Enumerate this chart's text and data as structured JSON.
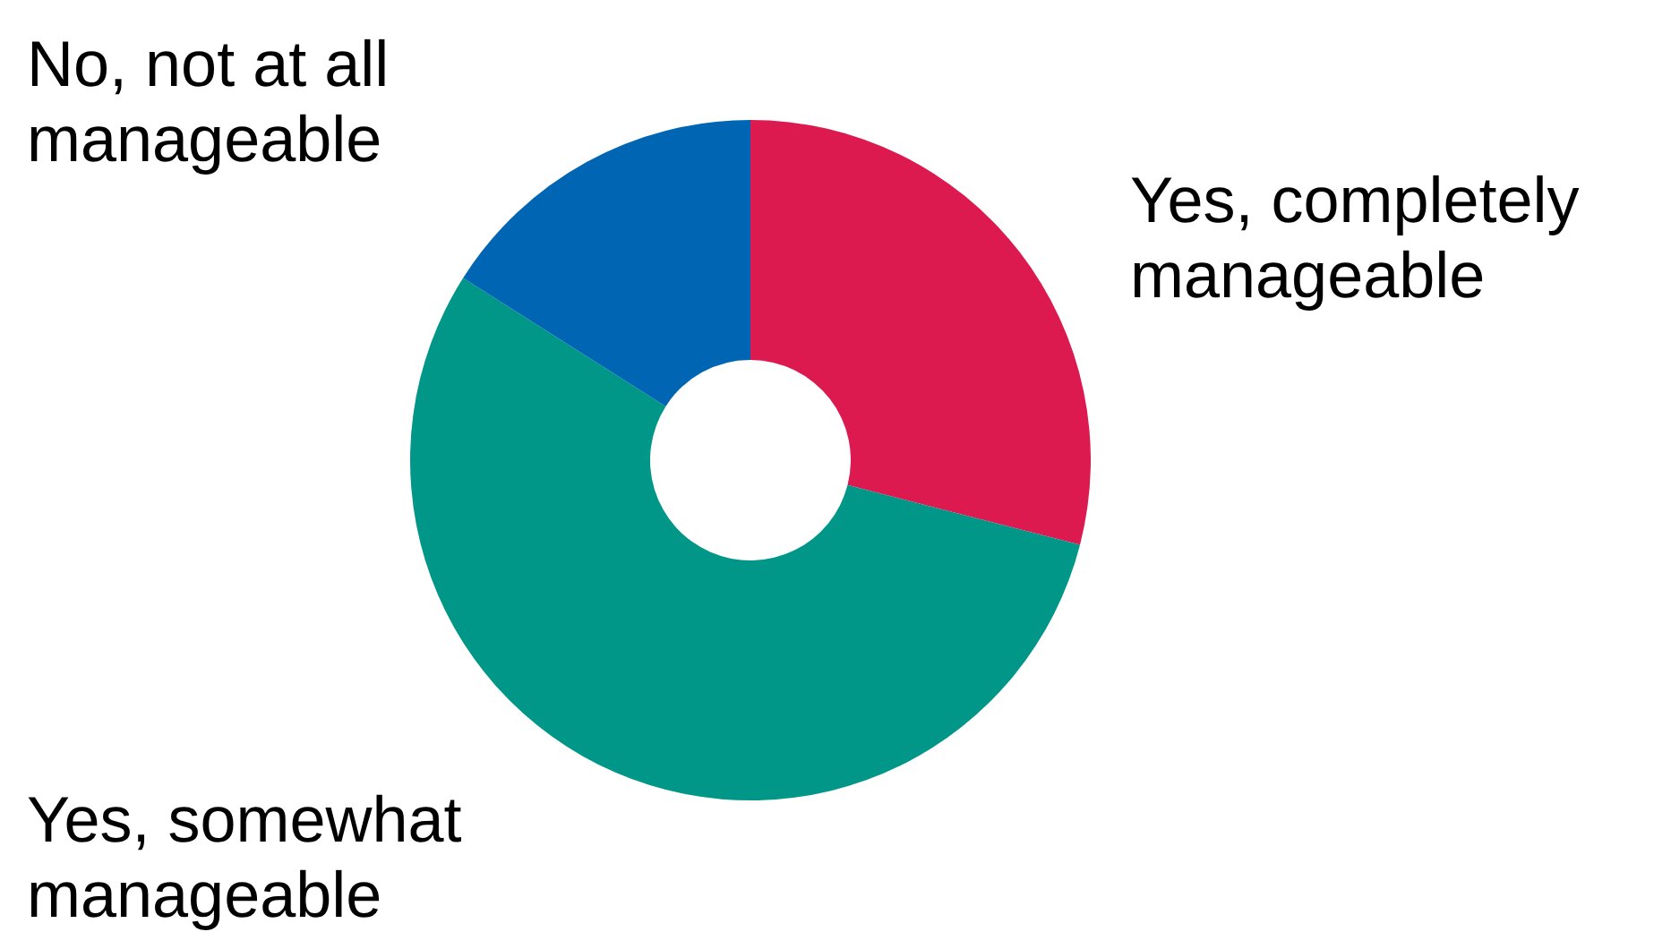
{
  "chart_data": {
    "type": "donut",
    "categories": [
      "Yes, completely manageable",
      "Yes, somewhat manageable",
      "No, not at all manageable"
    ],
    "values": [
      29,
      55,
      16
    ],
    "colors": [
      "#dc1a50",
      "#009688",
      "#0066b3"
    ]
  }
}
